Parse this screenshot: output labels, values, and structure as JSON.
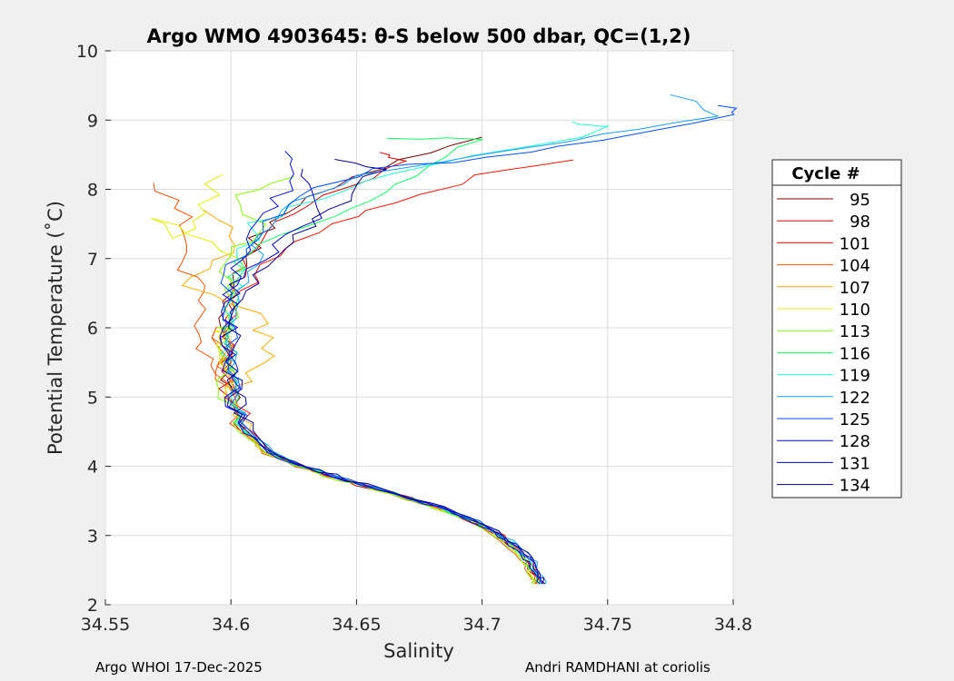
{
  "chart_data": {
    "type": "line",
    "title": "Argo WMO 4903645: θ-S below 500 dbar,  QC=(1,2)",
    "xlabel": "Salinity",
    "ylabel": "Potential Temperature (˚C)",
    "xlim": [
      34.55,
      34.8
    ],
    "ylim": [
      2,
      10
    ],
    "xticks": [
      34.55,
      34.6,
      34.65,
      34.7,
      34.75,
      34.8
    ],
    "xtick_labels": [
      "34.55",
      "34.6",
      "34.65",
      "34.7",
      "34.75",
      "34.8"
    ],
    "yticks": [
      2,
      3,
      4,
      5,
      6,
      7,
      8,
      9,
      10
    ],
    "ytick_labels": [
      "2",
      "3",
      "4",
      "5",
      "6",
      "7",
      "8",
      "9",
      "10"
    ],
    "grid": true,
    "legend": {
      "title": "Cycle #",
      "placement": "right-outside"
    },
    "deep_profile": [
      [
        34.598,
        6.0
      ],
      [
        34.599,
        5.5
      ],
      [
        34.6,
        5.0
      ],
      [
        34.606,
        4.5
      ],
      [
        34.615,
        4.2
      ],
      [
        34.628,
        4.0
      ],
      [
        34.645,
        3.8
      ],
      [
        34.665,
        3.6
      ],
      [
        34.683,
        3.4
      ],
      [
        34.697,
        3.2
      ],
      [
        34.707,
        3.0
      ],
      [
        34.714,
        2.8
      ],
      [
        34.719,
        2.6
      ],
      [
        34.722,
        2.4
      ],
      [
        34.723,
        2.3
      ]
    ],
    "series": [
      {
        "name": "95",
        "color": "#800000",
        "s_offset": 0.0,
        "upper": [
          [
            34.7,
            8.75
          ],
          [
            34.66,
            8.3
          ],
          [
            34.63,
            7.9
          ],
          [
            34.61,
            7.3
          ],
          [
            34.6,
            6.5
          ]
        ]
      },
      {
        "name": "98",
        "color": "#e00000",
        "s_offset": -0.001,
        "upper": [
          [
            34.66,
            8.55
          ],
          [
            34.67,
            8.4
          ],
          [
            34.64,
            7.9
          ],
          [
            34.615,
            7.4
          ],
          [
            34.6,
            6.6
          ]
        ]
      },
      {
        "name": "101",
        "color": "#ff1500",
        "s_offset": 0.001,
        "upper": [
          [
            34.733,
            8.42
          ],
          [
            34.7,
            8.2
          ],
          [
            34.665,
            7.8
          ],
          [
            34.64,
            7.5
          ],
          [
            34.612,
            6.9
          ],
          [
            34.6,
            6.2
          ]
        ]
      },
      {
        "name": "104",
        "color": "#ff5000",
        "s_offset": -0.002,
        "upper": [
          [
            34.57,
            8.1
          ],
          [
            34.585,
            7.6
          ],
          [
            34.577,
            6.95
          ],
          [
            34.59,
            6.5
          ],
          [
            34.588,
            5.8
          ],
          [
            34.598,
            5.2
          ]
        ]
      },
      {
        "name": "107",
        "color": "#ffaa00",
        "s_offset": 0.0,
        "upper": [
          [
            34.59,
            7.7
          ],
          [
            34.605,
            7.2
          ],
          [
            34.58,
            6.6
          ],
          [
            34.61,
            6.2
          ],
          [
            34.615,
            5.6
          ],
          [
            34.6,
            5.0
          ]
        ]
      },
      {
        "name": "110",
        "color": "#e0f000",
        "s_offset": -0.001,
        "upper": [
          [
            34.595,
            8.2
          ],
          [
            34.59,
            7.8
          ],
          [
            34.58,
            7.3
          ],
          [
            34.57,
            7.6
          ],
          [
            34.605,
            7.0
          ],
          [
            34.597,
            5.9
          ]
        ]
      },
      {
        "name": "113",
        "color": "#80ff00",
        "s_offset": -0.002,
        "upper": [
          [
            34.622,
            8.2
          ],
          [
            34.6,
            7.9
          ],
          [
            34.61,
            7.5
          ],
          [
            34.598,
            6.8
          ],
          [
            34.6,
            6.0
          ]
        ]
      },
      {
        "name": "116",
        "color": "#10ff60",
        "s_offset": 0.0,
        "upper": [
          [
            34.665,
            8.75
          ],
          [
            34.7,
            8.72
          ],
          [
            34.67,
            8.2
          ],
          [
            34.64,
            7.6
          ],
          [
            34.605,
            7.1
          ],
          [
            34.6,
            6.3
          ]
        ]
      },
      {
        "name": "119",
        "color": "#20ffd0",
        "s_offset": 0.001,
        "upper": [
          [
            34.735,
            8.97
          ],
          [
            34.754,
            8.9
          ],
          [
            34.7,
            8.5
          ],
          [
            34.65,
            8.1
          ],
          [
            34.61,
            7.5
          ],
          [
            34.6,
            6.5
          ]
        ]
      },
      {
        "name": "122",
        "color": "#18a0ff",
        "s_offset": 0.002,
        "upper": [
          [
            34.778,
            9.37
          ],
          [
            34.79,
            9.05
          ],
          [
            34.75,
            8.8
          ],
          [
            34.7,
            8.5
          ],
          [
            34.65,
            8.2
          ],
          [
            34.62,
            7.7
          ],
          [
            34.605,
            6.8
          ]
        ]
      },
      {
        "name": "125",
        "color": "#0050ff",
        "s_offset": 0.001,
        "upper": [
          [
            34.797,
            9.2
          ],
          [
            34.8,
            9.07
          ],
          [
            34.75,
            8.73
          ],
          [
            34.7,
            8.45
          ],
          [
            34.66,
            8.3
          ],
          [
            34.625,
            7.9
          ],
          [
            34.6,
            6.9
          ]
        ]
      },
      {
        "name": "128",
        "color": "#0010e0",
        "s_offset": 0.0,
        "upper": [
          [
            34.623,
            8.57
          ],
          [
            34.622,
            8.0
          ],
          [
            34.61,
            7.4
          ],
          [
            34.6,
            6.6
          ]
        ]
      },
      {
        "name": "131",
        "color": "#0000c0",
        "s_offset": 0.001,
        "upper": [
          [
            34.626,
            8.3
          ],
          [
            34.634,
            7.6
          ],
          [
            34.62,
            7.2
          ],
          [
            34.6,
            6.5
          ]
        ]
      },
      {
        "name": "134",
        "color": "#000090",
        "s_offset": 0.002,
        "upper": [
          [
            34.642,
            8.42
          ],
          [
            34.66,
            8.3
          ],
          [
            34.64,
            7.7
          ],
          [
            34.615,
            7.0
          ],
          [
            34.6,
            6.3
          ]
        ]
      }
    ]
  },
  "footer": {
    "left": "Argo WHOI 17-Dec-2025",
    "right": "Andri RAMDHANI at coriolis"
  }
}
